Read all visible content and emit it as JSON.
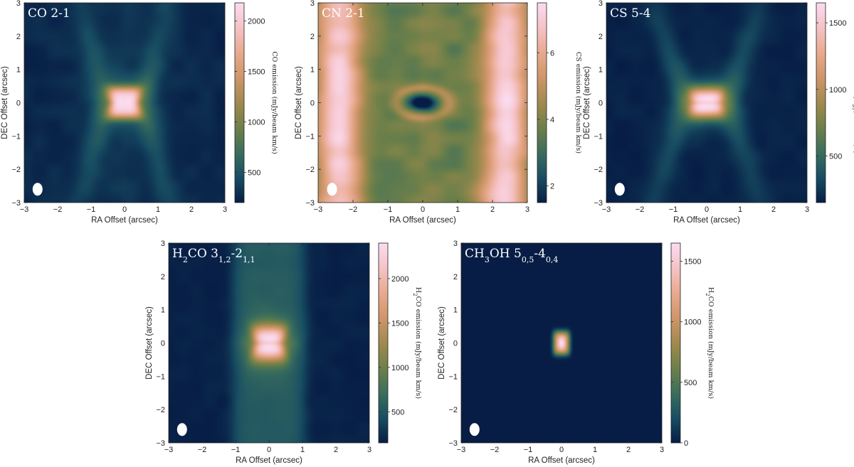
{
  "chart_data": [
    {
      "type": "heatmap",
      "title": "CO 2-1",
      "xlabel": "RA Offset (arcsec)",
      "ylabel": "DEC Offset (arcsec)",
      "colorbar_label": "CO emission (mJy/beam km/s)",
      "xlim": [
        -3,
        3
      ],
      "ylim": [
        -3,
        3
      ],
      "x_ticks": [
        "−3",
        "−2",
        "−1",
        "0",
        "1",
        "2",
        "3"
      ],
      "y_ticks": [
        "−3",
        "−2",
        "−1",
        "0",
        "1",
        "2",
        "3"
      ],
      "colorbar_range": [
        200,
        2180
      ],
      "colorbar_ticks": [
        "500",
        "1000",
        "1500",
        "2000"
      ],
      "colorbar_tick_values": [
        500,
        1000,
        1500,
        2000
      ],
      "morphology": "x-shaped",
      "peak": 2180,
      "beam": "white ellipse lower-left"
    },
    {
      "type": "heatmap",
      "title": "CN 2-1",
      "xlabel": "RA Offset (arcsec)",
      "ylabel": "DEC Offset (arcsec)",
      "colorbar_label": "CS emission (mJy/beam km/s)",
      "xlim": [
        -3,
        3
      ],
      "ylim": [
        -3,
        3
      ],
      "x_ticks": [
        "−3",
        "−2",
        "−1",
        "0",
        "1",
        "2",
        "3"
      ],
      "y_ticks": [
        "−3",
        "−2",
        "−1",
        "0",
        "1",
        "2",
        "3"
      ],
      "colorbar_range": [
        1.5,
        7.5
      ],
      "colorbar_ticks": [
        "2",
        "4",
        "6"
      ],
      "colorbar_tick_values": [
        2,
        4,
        6
      ],
      "morphology": "outer lobes with central absorption",
      "peak": 7.5,
      "beam": "white ellipse lower-left"
    },
    {
      "type": "heatmap",
      "title": "CS 5-4",
      "xlabel": "RA Offset (arcsec)",
      "ylabel": "DEC Offset (arcsec)",
      "colorbar_label": "CS emission (mJy/beam km/s)",
      "xlim": [
        -3,
        3
      ],
      "ylim": [
        -3,
        3
      ],
      "x_ticks": [
        "−3",
        "−2",
        "−1",
        "0",
        "1",
        "2",
        "3"
      ],
      "y_ticks": [
        "−3",
        "−2",
        "−1",
        "0",
        "1",
        "2",
        "3"
      ],
      "colorbar_range": [
        150,
        1650
      ],
      "colorbar_ticks": [
        "500",
        "1000",
        "1500"
      ],
      "colorbar_tick_values": [
        500,
        1000,
        1500
      ],
      "morphology": "x-shaped with wide outflow",
      "peak": 1650,
      "beam": "white ellipse lower-left"
    },
    {
      "type": "heatmap",
      "title_parts": [
        "H",
        "2",
        "CO 3",
        "1,2",
        "-2",
        "1,1"
      ],
      "xlabel": "RA Offset (arcsec)",
      "ylabel": "DEC Offset (arcsec)",
      "colorbar_label_parts": [
        "H",
        "2",
        "CO emission (mJy/beam km/s)"
      ],
      "xlim": [
        -3,
        3
      ],
      "ylim": [
        -3,
        3
      ],
      "x_ticks": [
        "−3",
        "−2",
        "−1",
        "0",
        "1",
        "2",
        "3"
      ],
      "y_ticks": [
        "−3",
        "−2",
        "−1",
        "0",
        "1",
        "2",
        "3"
      ],
      "colorbar_range": [
        150,
        2400
      ],
      "colorbar_ticks": [
        "500",
        "1000",
        "1500",
        "2000"
      ],
      "colorbar_tick_values": [
        500,
        1000,
        1500,
        2000
      ],
      "morphology": "x-shaped with vertical band",
      "peak": 2400,
      "beam": "white ellipse lower-left"
    },
    {
      "type": "heatmap",
      "title_parts": [
        "CH",
        "3",
        "OH 5",
        "0,5",
        "-4",
        "0,4"
      ],
      "xlabel": "RA Offset (arcsec)",
      "ylabel": "DEC Offset (arcsec)",
      "colorbar_label_parts": [
        "H",
        "2",
        "CO emission (mJy/beam km/s)"
      ],
      "xlim": [
        -3,
        3
      ],
      "ylim": [
        -3,
        3
      ],
      "x_ticks": [
        "−3",
        "−2",
        "−1",
        "0",
        "1",
        "2",
        "3"
      ],
      "y_ticks": [
        "−3",
        "−2",
        "−1",
        "0",
        "1",
        "2",
        "3"
      ],
      "colorbar_range": [
        0,
        1650
      ],
      "colorbar_ticks": [
        "0",
        "500",
        "1000",
        "1500"
      ],
      "colorbar_tick_values": [
        0,
        500,
        1000,
        1500
      ],
      "morphology": "compact central source",
      "peak": 1650,
      "beam": "white ellipse lower-left"
    }
  ],
  "colormap": [
    "#071d45",
    "#184e63",
    "#3b6e5c",
    "#6e8049",
    "#a18a4e",
    "#cf956a",
    "#e8aa8e",
    "#f5c2c6",
    "#fbdcf0"
  ]
}
